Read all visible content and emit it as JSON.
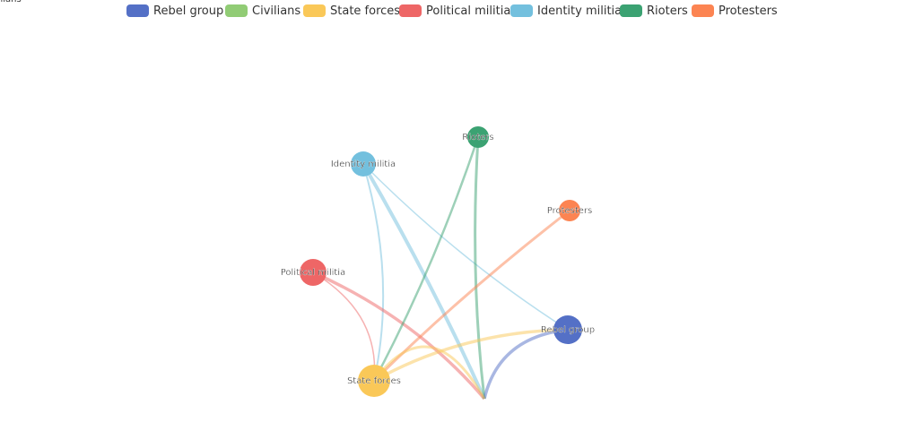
{
  "groups": [
    {
      "name": "Rebel group",
      "color": "#5470c6"
    },
    {
      "name": "Civilians",
      "color": "#91cc75"
    },
    {
      "name": "State forces",
      "color": "#fac858"
    },
    {
      "name": "Political militia",
      "color": "#ee6666"
    },
    {
      "name": "Identity militia",
      "color": "#73c0de"
    },
    {
      "name": "Rioters",
      "color": "#3ba272"
    },
    {
      "name": "Protesters",
      "color": "#fc8452"
    }
  ],
  "edges": [
    {
      "source": 4,
      "target": 1
    },
    {
      "source": 4,
      "target": 0
    },
    {
      "source": 4,
      "target": 2
    },
    {
      "source": 3,
      "target": 1
    },
    {
      "source": 3,
      "target": 2
    },
    {
      "source": 5,
      "target": 2
    },
    {
      "source": 5,
      "target": 1
    },
    {
      "source": 6,
      "target": 2
    },
    {
      "source": 2,
      "target": 0
    },
    {
      "source": 0,
      "target": 1
    }
  ]
}
